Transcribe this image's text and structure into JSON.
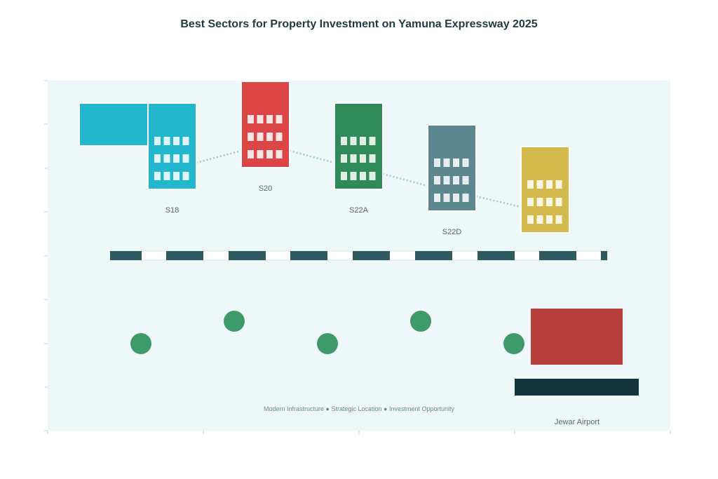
{
  "title": "Best Sectors for Property Investment on Yamuna Expressway 2025",
  "sectors": [
    {
      "label": "S18",
      "color": "#22B7CD"
    },
    {
      "label": "S20",
      "color": "#DB4545"
    },
    {
      "label": "S22A",
      "color": "#2E8B57"
    },
    {
      "label": "S22D",
      "color": "#5D878F"
    },
    {
      "label": "",
      "color": "#D2BA4C"
    }
  ],
  "tagline": "Modern Infrastructure ● Strategic Location ● Investment Opportunity",
  "airport": {
    "label": "Jewar Airport",
    "terminal_color": "#B5403B",
    "runway_color": "#13343B"
  },
  "colors": {
    "background": "#EFF8F8",
    "road": "#2F5A60",
    "tree": "#3F9A6B",
    "path": "#9FC8CC"
  }
}
